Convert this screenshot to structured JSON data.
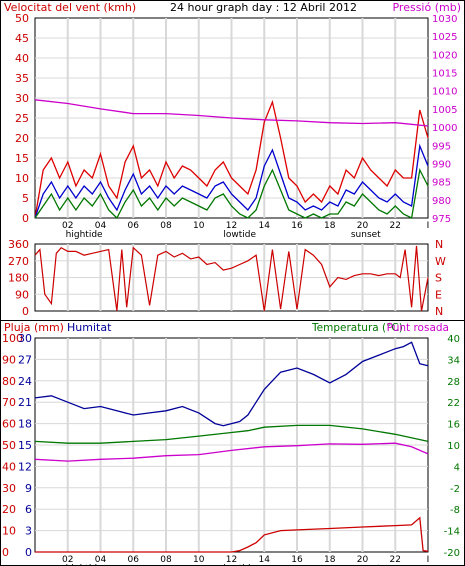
{
  "header": {
    "wind_label": "Velocitat del vent (kmh)",
    "title": "24 hour graph day : 12 Abril 2012",
    "pressure_label": "Pressió (mb)"
  },
  "colors": {
    "wind_avg": "#0000cc",
    "wind_gust": "#dd0000",
    "wind_low": "#007700",
    "pressure": "#cc00cc",
    "direction": "#cc0000",
    "rain": "#cc0000",
    "humidity": "#000099",
    "temperature": "#007700",
    "dewpoint": "#cc00cc",
    "grid": "#d8d8d8"
  },
  "chart_data": [
    {
      "id": "wind-pressure",
      "type": "line",
      "title": "24 hour graph day : 12 Abril 2012",
      "ylabel_left": "Velocitat del vent (kmh)",
      "ylabel_right": "Pressió (mb)",
      "ylim_left": [
        0,
        50
      ],
      "ylim_right": [
        975,
        1030
      ],
      "yticks_left": [
        "0",
        "5",
        "10",
        "15",
        "20",
        "25",
        "30",
        "35",
        "40",
        "45",
        "50"
      ],
      "yticks_right": [
        "975",
        "980",
        "985",
        "990",
        "995",
        "1000",
        "1005",
        "1010",
        "1015",
        "1020",
        "1025",
        "1030"
      ],
      "xticks": [
        "02",
        "04",
        "06",
        "08",
        "10",
        "12",
        "14",
        "16",
        "18",
        "20",
        "22",
        "I"
      ],
      "markers": [
        {
          "label": "hightide",
          "x": 3.0
        },
        {
          "label": "lowtide",
          "x": 12.5
        },
        {
          "label": "sunset",
          "x": 20.2
        }
      ],
      "series": [
        {
          "key": "gust",
          "color": "#dd0000",
          "x": [
            0,
            0.5,
            1,
            1.5,
            2,
            2.5,
            3,
            3.5,
            4,
            4.5,
            5,
            5.5,
            6,
            6.5,
            7,
            7.5,
            8,
            8.5,
            9,
            9.5,
            10,
            10.5,
            11,
            11.5,
            12,
            12.5,
            13,
            13.5,
            14,
            14.5,
            15,
            15.5,
            16,
            16.5,
            17,
            17.5,
            18,
            18.5,
            19,
            19.5,
            20,
            20.5,
            21,
            21.5,
            22,
            22.5,
            23,
            23.5,
            24
          ],
          "values": [
            0,
            12,
            15,
            10,
            14,
            8,
            12,
            10,
            16,
            8,
            5,
            14,
            18,
            10,
            12,
            8,
            14,
            10,
            13,
            12,
            10,
            8,
            12,
            14,
            10,
            8,
            6,
            12,
            24,
            29,
            20,
            10,
            8,
            4,
            6,
            4,
            8,
            6,
            12,
            10,
            15,
            12,
            10,
            8,
            12,
            10,
            10,
            27,
            20
          ]
        },
        {
          "key": "average",
          "color": "#0000cc",
          "x": [
            0,
            0.5,
            1,
            1.5,
            2,
            2.5,
            3,
            3.5,
            4,
            4.5,
            5,
            5.5,
            6,
            6.5,
            7,
            7.5,
            8,
            8.5,
            9,
            9.5,
            10,
            10.5,
            11,
            11.5,
            12,
            12.5,
            13,
            13.5,
            14,
            14.5,
            15,
            15.5,
            16,
            16.5,
            17,
            17.5,
            18,
            18.5,
            19,
            19.5,
            20,
            20.5,
            21,
            21.5,
            22,
            22.5,
            23,
            23.5,
            24
          ],
          "values": [
            0,
            6,
            9,
            5,
            8,
            5,
            8,
            6,
            9,
            5,
            2,
            7,
            11,
            6,
            8,
            5,
            8,
            6,
            8,
            7,
            6,
            5,
            8,
            9,
            6,
            4,
            2,
            5,
            13,
            17,
            11,
            5,
            4,
            2,
            3,
            2,
            4,
            3,
            7,
            6,
            9,
            7,
            5,
            4,
            6,
            4,
            3,
            18,
            13
          ]
        },
        {
          "key": "low",
          "color": "#007700",
          "x": [
            0,
            0.5,
            1,
            1.5,
            2,
            2.5,
            3,
            3.5,
            4,
            4.5,
            5,
            5.5,
            6,
            6.5,
            7,
            7.5,
            8,
            8.5,
            9,
            9.5,
            10,
            10.5,
            11,
            11.5,
            12,
            12.5,
            13,
            13.5,
            14,
            14.5,
            15,
            15.5,
            16,
            16.5,
            17,
            17.5,
            18,
            18.5,
            19,
            19.5,
            20,
            20.5,
            21,
            21.5,
            22,
            22.5,
            23,
            23.5,
            24
          ],
          "values": [
            0,
            3,
            6,
            2,
            5,
            2,
            5,
            3,
            6,
            2,
            0,
            4,
            7,
            3,
            5,
            2,
            5,
            3,
            5,
            4,
            3,
            2,
            5,
            6,
            3,
            1,
            0,
            2,
            8,
            12,
            7,
            2,
            1,
            0,
            1,
            0,
            1,
            1,
            4,
            3,
            6,
            4,
            2,
            1,
            3,
            1,
            0,
            12,
            8
          ]
        },
        {
          "key": "pressure",
          "color": "#cc00cc",
          "axis": "right",
          "x": [
            0,
            2,
            4,
            6,
            8,
            10,
            12,
            14,
            16,
            18,
            20,
            22,
            24
          ],
          "values": [
            1007.5,
            1006.5,
            1005.0,
            1003.7,
            1003.7,
            1003.2,
            1002.5,
            1002.0,
            1001.7,
            1001.2,
            1001.0,
            1001.2,
            1000.3
          ]
        }
      ]
    },
    {
      "id": "direction",
      "type": "line",
      "ylim": [
        0,
        360
      ],
      "yticks": [
        "0",
        "90",
        "180",
        "270",
        "360"
      ],
      "compass": [
        "N",
        "W",
        "S",
        "E",
        "N"
      ],
      "series": [
        {
          "key": "direction",
          "color": "#cc0000",
          "x": [
            0,
            0.3,
            0.6,
            1,
            1.3,
            1.6,
            2,
            2.5,
            3,
            3.5,
            4,
            4.5,
            5,
            5.3,
            5.6,
            6,
            6.5,
            7,
            7.5,
            8,
            8.5,
            9,
            9.5,
            10,
            10.5,
            11,
            11.5,
            12,
            12.5,
            13,
            13.5,
            14,
            14.5,
            15,
            15.5,
            16,
            16.5,
            17,
            17.5,
            18,
            18.5,
            19,
            19.5,
            20,
            20.5,
            21,
            21.5,
            22,
            22.3,
            22.6,
            23,
            23.3,
            23.6,
            24
          ],
          "values": [
            300,
            330,
            90,
            40,
            310,
            340,
            320,
            320,
            300,
            310,
            320,
            330,
            0,
            330,
            20,
            340,
            300,
            30,
            300,
            320,
            290,
            310,
            280,
            290,
            250,
            260,
            220,
            230,
            250,
            270,
            300,
            0,
            330,
            10,
            320,
            10,
            330,
            300,
            250,
            130,
            180,
            170,
            190,
            200,
            200,
            190,
            200,
            200,
            180,
            330,
            20,
            350,
            0,
            180
          ]
        }
      ]
    },
    {
      "id": "rain-humidity-temp",
      "type": "line",
      "labels": {
        "rain": "Pluja (mm)",
        "humidity": "Humitat",
        "temperature": "Temperatura (°C)",
        "dewpoint": "Punt rosada"
      },
      "ylim_humidity": [
        0,
        100
      ],
      "ylim_rain": [
        0,
        30
      ],
      "ylim_temp": [
        -20,
        40
      ],
      "yticks_humidity": [
        "0",
        "10",
        "20",
        "30",
        "40",
        "50",
        "60",
        "70",
        "80",
        "90",
        "100"
      ],
      "yticks_rain": [
        "0",
        "3",
        "6",
        "9",
        "12",
        "15",
        "18",
        "21",
        "24",
        "27",
        "30"
      ],
      "yticks_temp": [
        "-20",
        "-14",
        "-8",
        "-2",
        "4",
        "10",
        "16",
        "22",
        "28",
        "34",
        "40"
      ],
      "xticks": [
        "02",
        "04",
        "06",
        "08",
        "10",
        "12",
        "14",
        "16",
        "18",
        "20",
        "22",
        "I"
      ],
      "markers": [
        {
          "label": "hightide",
          "x": 3.0
        },
        {
          "label": "lowtide",
          "x": 12.5
        },
        {
          "label": "sunset",
          "x": 20.2
        }
      ],
      "series": [
        {
          "key": "humidity",
          "color": "#000099",
          "axis": "humidity",
          "x": [
            0,
            1,
            2,
            3,
            4,
            5,
            6,
            7,
            8,
            9,
            10,
            11,
            11.5,
            12,
            12.5,
            13,
            13.5,
            14,
            14.5,
            15,
            16,
            17,
            18,
            19,
            20,
            21,
            22,
            22.5,
            23,
            23.5,
            24
          ],
          "values": [
            72,
            73,
            70,
            67,
            68,
            66,
            64,
            65,
            66,
            68,
            65,
            60,
            59,
            60,
            61,
            64,
            70,
            76,
            80,
            84,
            86,
            83,
            79,
            83,
            89,
            92,
            95,
            96,
            98,
            88,
            87
          ]
        },
        {
          "key": "rain",
          "color": "#cc0000",
          "axis": "rain",
          "x": [
            0,
            10,
            12,
            12.5,
            13,
            13.5,
            14,
            15,
            16,
            18,
            20,
            22,
            23,
            23.5,
            23.7,
            24
          ],
          "values": [
            0,
            0,
            0,
            0.2,
            0.7,
            1.3,
            2.4,
            3.0,
            3.1,
            3.3,
            3.5,
            3.7,
            3.8,
            4.8,
            0.2,
            0.1
          ]
        },
        {
          "key": "temperature",
          "color": "#007700",
          "axis": "temp",
          "x": [
            0,
            2,
            4,
            6,
            8,
            10,
            12,
            13,
            14,
            16,
            18,
            20,
            22,
            24
          ],
          "values": [
            11.0,
            10.5,
            10.5,
            11.0,
            11.5,
            12.5,
            13.5,
            14.0,
            15.0,
            15.5,
            15.5,
            14.5,
            13.0,
            11.0
          ]
        },
        {
          "key": "dewpoint",
          "color": "#cc00cc",
          "axis": "temp",
          "x": [
            0,
            2,
            4,
            6,
            8,
            10,
            12,
            14,
            16,
            18,
            20,
            22,
            23,
            24
          ],
          "values": [
            6.0,
            5.5,
            6.0,
            6.3,
            7.0,
            7.3,
            8.5,
            9.5,
            9.8,
            10.3,
            10.2,
            10.5,
            9.5,
            7.5
          ]
        }
      ]
    }
  ]
}
